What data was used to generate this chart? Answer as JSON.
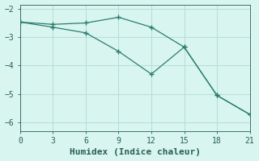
{
  "xlabel": "Humidex (Indice chaleur)",
  "line1_x": [
    0,
    3,
    6,
    9,
    12,
    15,
    18,
    21
  ],
  "line1_y": [
    -2.47,
    -2.55,
    -2.5,
    -2.3,
    -2.65,
    -3.35,
    -5.05,
    -5.72
  ],
  "line2_x": [
    0,
    3,
    6,
    9,
    12,
    15,
    18,
    21
  ],
  "line2_y": [
    -2.47,
    -2.65,
    -2.85,
    -3.5,
    -4.3,
    -3.35,
    -5.05,
    -5.72
  ],
  "line_color": "#2a7d6e",
  "bg_color": "#d8f5f0",
  "grid_color": "#b8ddd6",
  "xlim": [
    0,
    21
  ],
  "ylim": [
    -6.3,
    -1.85
  ],
  "xticks": [
    0,
    3,
    6,
    9,
    12,
    15,
    18,
    21
  ],
  "yticks": [
    -2,
    -3,
    -4,
    -5,
    -6
  ],
  "marker": "+",
  "markersize": 4,
  "linewidth": 0.9,
  "font_color": "#2a5e52",
  "tick_label_fontsize": 7,
  "xlabel_fontsize": 8
}
